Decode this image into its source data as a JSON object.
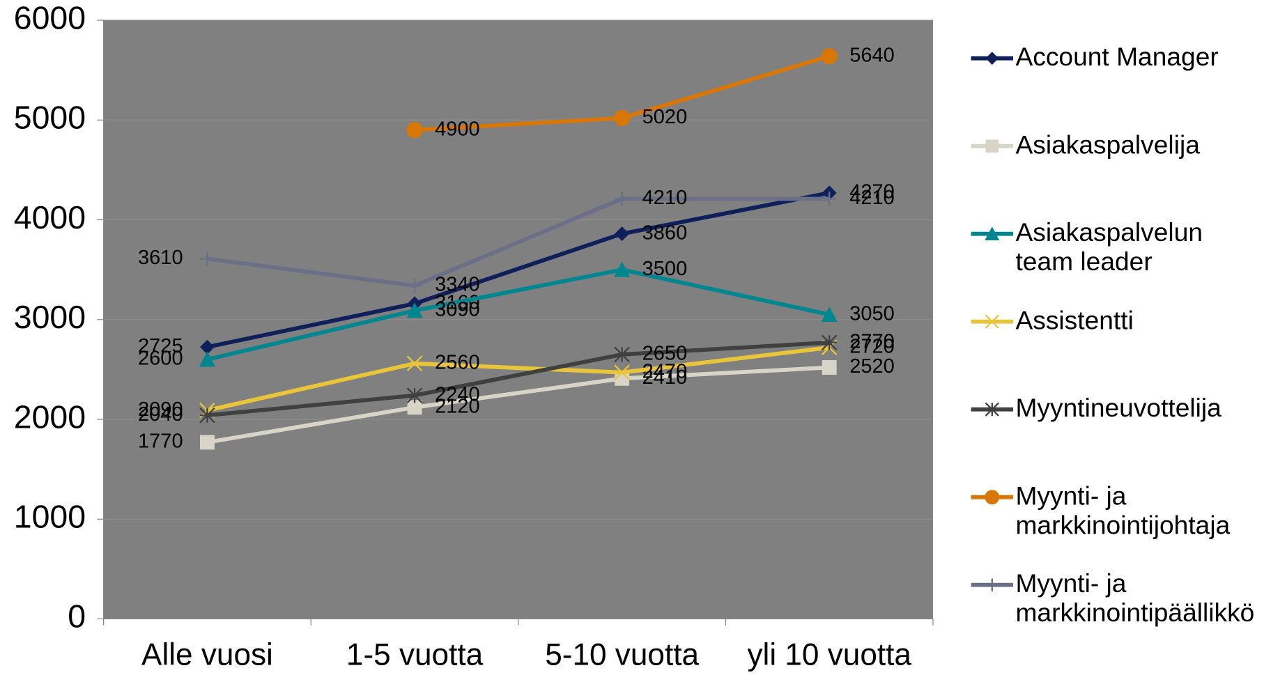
{
  "chart_data": {
    "type": "line",
    "categories": [
      "Alle vuosi",
      "1-5 vuotta",
      "5-10 vuotta",
      "yli 10 vuotta"
    ],
    "series": [
      {
        "name": "Account Manager",
        "color": "#0f1f5a",
        "marker": "diamond",
        "values": [
          2725,
          3160,
          3860,
          4270
        ]
      },
      {
        "name": "Asiakaspalvelija",
        "color": "#d9d4c8",
        "marker": "square",
        "values": [
          1770,
          2120,
          2410,
          2520
        ]
      },
      {
        "name": "Asiakaspalvelun team leader",
        "color": "#00868f",
        "marker": "triangle",
        "values": [
          2600,
          3090,
          3500,
          3050
        ]
      },
      {
        "name": "Assistentti",
        "color": "#e8c53a",
        "marker": "x",
        "values": [
          2090,
          2560,
          2470,
          2720
        ]
      },
      {
        "name": "Myyntineuvottelija",
        "color": "#404040",
        "marker": "star",
        "values": [
          2040,
          2240,
          2650,
          2770
        ]
      },
      {
        "name": "Myynti- ja markkinointijohtaja",
        "color": "#d97706",
        "marker": "circle",
        "values": [
          null,
          4900,
          5020,
          5640
        ]
      },
      {
        "name": "Myynti- ja markkinointipäällikkö",
        "color": "#6b6f88",
        "marker": "plus",
        "values": [
          3610,
          3340,
          4210,
          4210
        ]
      }
    ],
    "ylim": [
      0,
      6000
    ],
    "yticks": [
      0,
      1000,
      2000,
      3000,
      4000,
      5000,
      6000
    ],
    "grid": true,
    "legend": "right"
  }
}
